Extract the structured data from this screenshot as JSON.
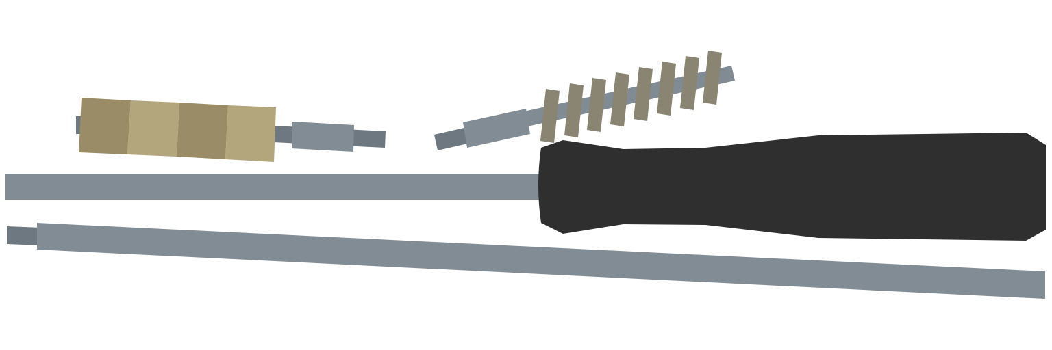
{
  "scene": {
    "subject": "cleaning-rod-kit",
    "background_color": "#ffffff",
    "items": [
      {
        "name": "cotton-mop-attachment",
        "colors": {
          "pad_dark": "#9a8c66",
          "pad_light": "#b3a57c",
          "shaft": "#808b94",
          "shaft_dark": "#6e7880"
        }
      },
      {
        "name": "bore-brush-attachment",
        "colors": {
          "bristle": "#8a8573",
          "shaft": "#808b94",
          "shaft_dark": "#6e7880"
        }
      },
      {
        "name": "rod-handle",
        "colors": {
          "handle": "#2f2f2f",
          "rod": "#828c95"
        }
      },
      {
        "name": "rod-extension-section",
        "colors": {
          "rod": "#828c95",
          "tip": "#6e7880"
        }
      }
    ]
  }
}
